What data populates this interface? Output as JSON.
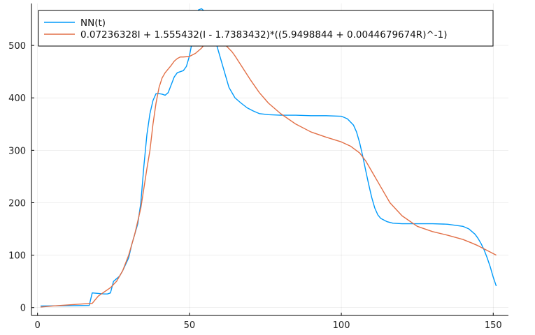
{
  "chart_data": {
    "type": "line",
    "title": "",
    "xlabel": "",
    "ylabel": "",
    "xlim": [
      -2,
      155
    ],
    "ylim": [
      -15,
      580
    ],
    "xticks": [
      0,
      50,
      100,
      150
    ],
    "yticks": [
      0,
      100,
      200,
      300,
      400,
      500
    ],
    "grid": true,
    "legend_position": "top-left",
    "series": [
      {
        "name": "NN(t)",
        "color": "#009AFA",
        "x": [
          1,
          17,
          18,
          22,
          23,
          24,
          25,
          27,
          28,
          30,
          31,
          32,
          33,
          34,
          35,
          36,
          37,
          38,
          39,
          40,
          41,
          42,
          43,
          44,
          45,
          46,
          47,
          48,
          49,
          50,
          51,
          52,
          53,
          54,
          55,
          56,
          57,
          58,
          59,
          60,
          61,
          62,
          63,
          65,
          67,
          69,
          71,
          73,
          76,
          80,
          85,
          90,
          95,
          100,
          102,
          104,
          105,
          106,
          107,
          108,
          109,
          110,
          111,
          112,
          113,
          115,
          117,
          120,
          125,
          130,
          135,
          140,
          142,
          144,
          145,
          146,
          147,
          148,
          149,
          150,
          151
        ],
        "values": [
          3,
          4,
          28,
          26,
          26,
          28,
          50,
          60,
          70,
          95,
          120,
          140,
          160,
          200,
          270,
          330,
          370,
          395,
          408,
          408,
          407,
          405,
          410,
          425,
          440,
          448,
          450,
          452,
          460,
          480,
          510,
          545,
          568,
          570,
          565,
          555,
          540,
          520,
          500,
          480,
          460,
          440,
          420,
          400,
          390,
          381,
          375,
          370,
          368,
          367,
          367,
          366,
          366,
          365,
          360,
          348,
          335,
          315,
          290,
          262,
          235,
          210,
          190,
          177,
          170,
          164,
          161,
          160,
          160,
          160,
          159,
          155,
          150,
          140,
          132,
          122,
          110,
          95,
          78,
          58,
          41
        ]
      },
      {
        "name": "0.07236328I + 1.555432(I - 1.7383432)*((5.9498844 + 0.0044679674R)^-1)",
        "color": "#E26F46",
        "x": [
          1,
          5,
          10,
          15,
          18,
          20,
          22,
          24,
          26,
          28,
          30,
          32,
          34,
          36,
          37,
          38,
          39,
          40,
          41,
          42,
          43,
          44,
          45,
          46,
          47,
          48,
          50,
          52,
          54,
          56,
          57,
          58,
          59,
          60,
          61,
          62,
          63,
          64,
          65,
          67,
          70,
          73,
          76,
          80,
          85,
          90,
          95,
          100,
          103,
          106,
          108,
          110,
          113,
          116,
          120,
          125,
          130,
          135,
          140,
          143,
          145,
          147,
          149,
          151
        ],
        "values": [
          1,
          3,
          5,
          7,
          8,
          22,
          30,
          38,
          50,
          70,
          100,
          140,
          190,
          265,
          300,
          350,
          390,
          420,
          438,
          448,
          455,
          462,
          470,
          475,
          478,
          478,
          479,
          485,
          495,
          510,
          515,
          516,
          514,
          510,
          505,
          500,
          494,
          488,
          480,
          462,
          435,
          410,
          390,
          370,
          350,
          335,
          325,
          316,
          308,
          295,
          280,
          260,
          230,
          200,
          175,
          155,
          145,
          138,
          130,
          123,
          118,
          112,
          106,
          100
        ]
      }
    ]
  }
}
